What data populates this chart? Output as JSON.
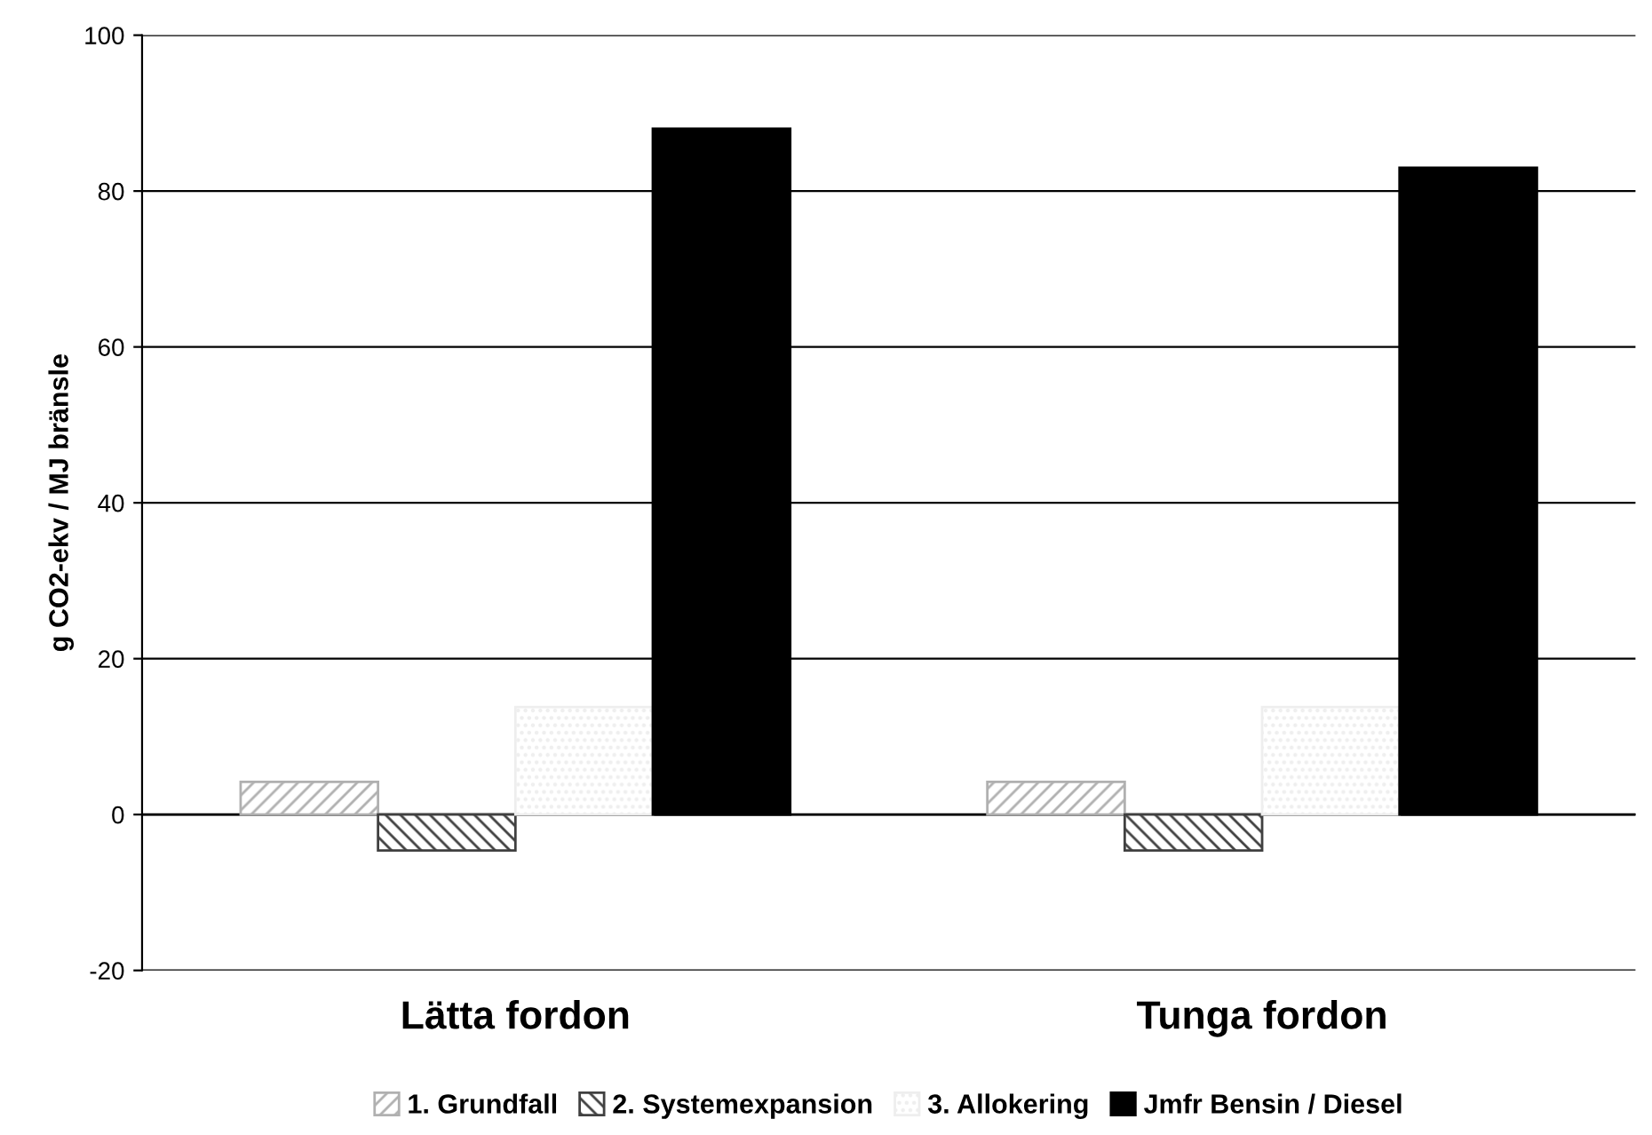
{
  "chart_data": {
    "type": "bar",
    "ylabel": "g CO2-ekv / MJ bränsle",
    "categories": [
      "Lätta fordon",
      "Tunga fordon"
    ],
    "series": [
      {
        "name": "1. Grundfall",
        "color": "#b0b0b0",
        "values": [
          4.2,
          4.2
        ]
      },
      {
        "name": "2. Systemexpansion",
        "color": "#404040",
        "values": [
          -4.6,
          -4.6
        ]
      },
      {
        "name": "3. Allokering",
        "color": "#eeeeee",
        "values": [
          13.8,
          13.8
        ]
      },
      {
        "name": "Jmfr Bensin / Diesel",
        "color": "#000000",
        "values": [
          88,
          83
        ]
      }
    ],
    "ylim": [
      -20,
      100
    ],
    "yticks": [
      -20,
      0,
      20,
      40,
      60,
      80,
      100
    ],
    "grid": "y",
    "legend": "bottom"
  }
}
